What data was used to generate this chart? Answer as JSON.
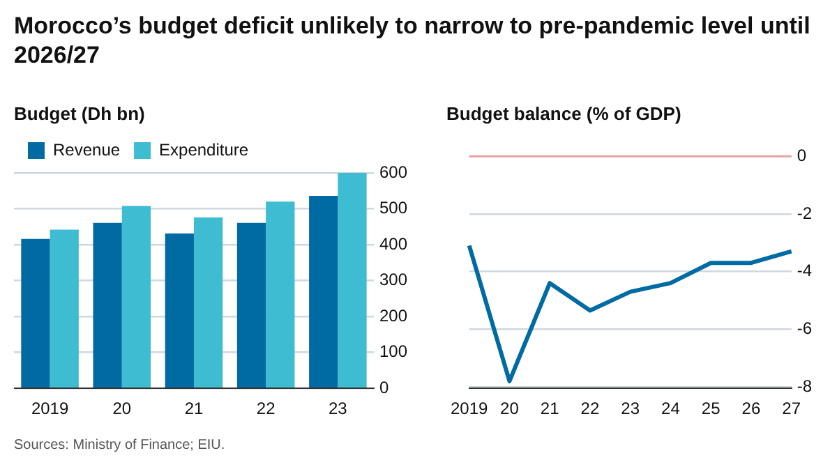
{
  "chart_data": [
    {
      "type": "bar",
      "title": "Morocco’s budget deficit unlikely to narrow to pre-pandemic level until 2026/27",
      "subtitle": "Budget (Dh bn)",
      "categories": [
        "2019",
        "20",
        "21",
        "22",
        "23"
      ],
      "series": [
        {
          "name": "Revenue",
          "color": "#006ba2",
          "values": [
            416,
            461,
            431,
            461,
            536
          ]
        },
        {
          "name": "Expenditure",
          "color": "#3ebcd2",
          "values": [
            442,
            508,
            476,
            520,
            600
          ]
        }
      ],
      "ylim": [
        0,
        600
      ],
      "yticks": [
        0,
        100,
        200,
        300,
        400,
        500,
        600
      ],
      "grid": "y",
      "legend": "top left",
      "annotations": [
        "Sources: Ministry of Finance; EIU."
      ]
    },
    {
      "type": "line",
      "subtitle": "Budget balance (% of GDP)",
      "categories": [
        "2019",
        "20",
        "21",
        "22",
        "23",
        "24",
        "25",
        "26",
        "27"
      ],
      "series": [
        {
          "color": "#006ba2",
          "values": [
            -3.1,
            -7.8,
            -4.4,
            -5.35,
            -4.7,
            -4.4,
            -3.7,
            -3.7,
            -3.3
          ]
        }
      ],
      "ylim": [
        -8.05,
        0.1
      ],
      "yticks": [
        -8,
        -6,
        -4,
        -2,
        0
      ],
      "grid": "y",
      "marker": "none",
      "line_style": "solid",
      "ref_lines": [
        {
          "axis": "y",
          "value": 0,
          "color": "#e8a3a3"
        }
      ]
    }
  ]
}
